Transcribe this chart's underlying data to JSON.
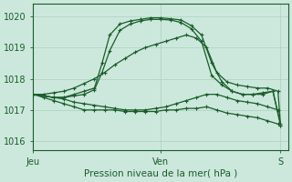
{
  "bg_color": "#cce8dc",
  "plot_bg_color": "#cce8dc",
  "grid_color": "#aad0c0",
  "line_color": "#1a5c2a",
  "xlabel": "Pression niveau de la mer( hPa )",
  "ylim": [
    1015.7,
    1020.4
  ],
  "yticks": [
    1016,
    1017,
    1018,
    1019,
    1020
  ],
  "xtick_labels": [
    "Jeu",
    "Ven",
    "S"
  ],
  "xtick_positions": [
    0.0,
    0.5,
    0.97
  ],
  "series": [
    {
      "x": [
        0.0,
        0.04,
        0.08,
        0.12,
        0.16,
        0.2,
        0.24,
        0.27,
        0.3,
        0.34,
        0.38,
        0.42,
        0.46,
        0.5,
        0.54,
        0.58,
        0.62,
        0.66,
        0.7,
        0.74,
        0.78,
        0.82,
        0.86,
        0.9,
        0.94,
        0.97
      ],
      "y": [
        1017.5,
        1017.45,
        1017.4,
        1017.4,
        1017.5,
        1017.6,
        1017.7,
        1018.5,
        1019.4,
        1019.75,
        1019.85,
        1019.9,
        1019.95,
        1019.95,
        1019.92,
        1019.88,
        1019.7,
        1019.4,
        1018.5,
        1017.9,
        1017.6,
        1017.5,
        1017.5,
        1017.55,
        1017.6,
        1016.5
      ]
    },
    {
      "x": [
        0.0,
        0.04,
        0.08,
        0.12,
        0.16,
        0.2,
        0.24,
        0.27,
        0.3,
        0.34,
        0.38,
        0.42,
        0.46,
        0.5,
        0.54,
        0.58,
        0.62,
        0.66,
        0.7,
        0.74,
        0.78,
        0.82,
        0.86,
        0.9,
        0.94,
        0.97
      ],
      "y": [
        1017.5,
        1017.45,
        1017.4,
        1017.4,
        1017.45,
        1017.5,
        1017.65,
        1018.2,
        1018.9,
        1019.55,
        1019.75,
        1019.85,
        1019.9,
        1019.9,
        1019.88,
        1019.8,
        1019.6,
        1019.2,
        1018.1,
        1017.8,
        1017.6,
        1017.5,
        1017.5,
        1017.5,
        1017.6,
        1016.55
      ]
    },
    {
      "x": [
        0.0,
        0.04,
        0.08,
        0.12,
        0.16,
        0.2,
        0.24,
        0.28,
        0.32,
        0.36,
        0.4,
        0.44,
        0.48,
        0.52,
        0.56,
        0.6,
        0.64,
        0.68,
        0.72,
        0.76,
        0.8,
        0.84,
        0.88,
        0.92,
        0.96,
        0.97
      ],
      "y": [
        1017.5,
        1017.5,
        1017.55,
        1017.6,
        1017.7,
        1017.85,
        1018.0,
        1018.2,
        1018.45,
        1018.65,
        1018.85,
        1019.0,
        1019.1,
        1019.2,
        1019.3,
        1019.4,
        1019.3,
        1019.0,
        1018.2,
        1017.9,
        1017.8,
        1017.75,
        1017.7,
        1017.7,
        1017.6,
        1016.5
      ]
    },
    {
      "x": [
        0.0,
        0.04,
        0.08,
        0.12,
        0.16,
        0.2,
        0.24,
        0.28,
        0.32,
        0.36,
        0.4,
        0.44,
        0.48,
        0.52,
        0.56,
        0.6,
        0.64,
        0.68,
        0.72,
        0.76,
        0.8,
        0.84,
        0.88,
        0.92,
        0.96
      ],
      "y": [
        1017.5,
        1017.45,
        1017.4,
        1017.35,
        1017.25,
        1017.2,
        1017.15,
        1017.1,
        1017.05,
        1017.0,
        1017.0,
        1017.0,
        1017.05,
        1017.1,
        1017.2,
        1017.3,
        1017.4,
        1017.5,
        1017.5,
        1017.4,
        1017.3,
        1017.25,
        1017.2,
        1017.1,
        1017.0
      ]
    },
    {
      "x": [
        0.0,
        0.04,
        0.08,
        0.12,
        0.16,
        0.2,
        0.24,
        0.28,
        0.32,
        0.36,
        0.4,
        0.44,
        0.48,
        0.52,
        0.56,
        0.6,
        0.64,
        0.68,
        0.72,
        0.76,
        0.8,
        0.84,
        0.88,
        0.92,
        0.96
      ],
      "y": [
        1017.5,
        1017.4,
        1017.3,
        1017.2,
        1017.1,
        1017.0,
        1017.0,
        1017.0,
        1017.0,
        1016.95,
        1016.95,
        1016.95,
        1016.95,
        1017.0,
        1017.0,
        1017.05,
        1017.05,
        1017.1,
        1017.0,
        1016.9,
        1016.85,
        1016.8,
        1016.75,
        1016.65,
        1016.55
      ]
    }
  ]
}
